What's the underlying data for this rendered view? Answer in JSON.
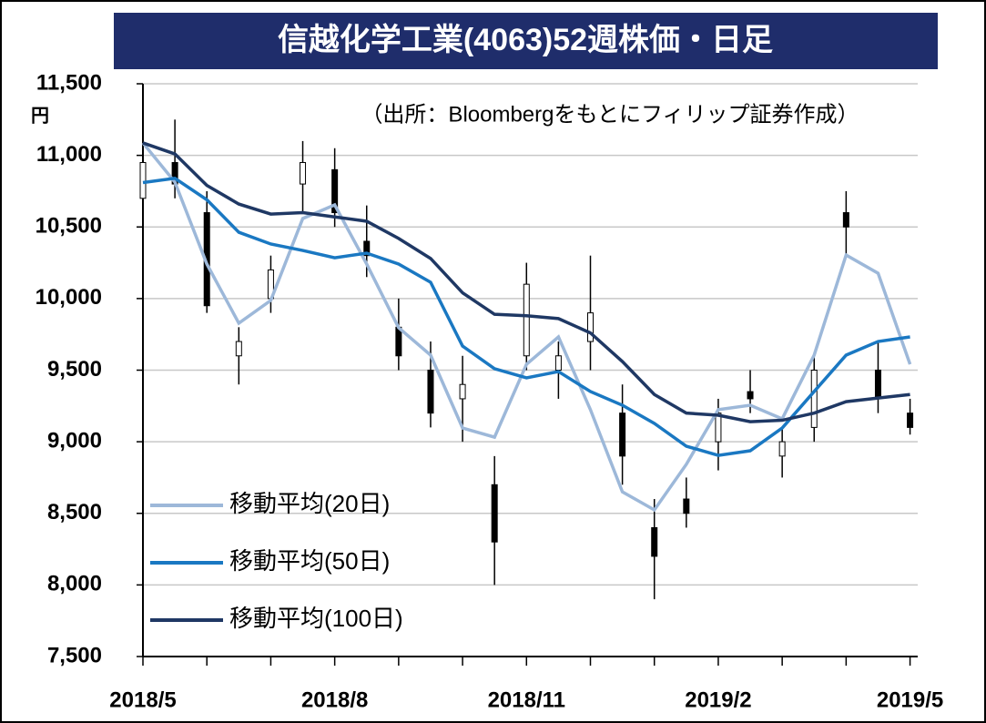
{
  "chart_data": {
    "type": "candlestick",
    "title": "信越化学工業(4063)52週株価・日足",
    "note": "（出所：Bloombergをもとにフィリップ証券作成）",
    "y_unit": "円",
    "x": [
      0,
      0.5,
      1,
      1.5,
      2,
      2.5,
      3,
      3.5,
      4,
      4.5,
      5,
      5.5,
      6,
      6.5,
      7,
      7.5,
      8,
      8.5,
      9,
      9.5,
      10,
      10.5,
      11,
      11.5,
      12
    ],
    "xlim": [
      0,
      12.12
    ],
    "xticks": [
      {
        "value": 0,
        "label": "2018/5"
      },
      {
        "value": 3,
        "label": "2018/8"
      },
      {
        "value": 6,
        "label": "2018/11"
      },
      {
        "value": 9,
        "label": "2019/2"
      },
      {
        "value": 12,
        "label": "2019/5"
      }
    ],
    "xminorticks": [
      1,
      2,
      4,
      5,
      7,
      8,
      10,
      11
    ],
    "ylim": [
      7500,
      11500
    ],
    "yticks": [
      {
        "value": 7500,
        "label": "7,500"
      },
      {
        "value": 8000,
        "label": "8,000"
      },
      {
        "value": 8500,
        "label": "8,500"
      },
      {
        "value": 9000,
        "label": "9,000"
      },
      {
        "value": 9500,
        "label": "9,500"
      },
      {
        "value": 10000,
        "label": "10,000"
      },
      {
        "value": 10500,
        "label": "10,500"
      },
      {
        "value": 11000,
        "label": "11,000"
      },
      {
        "value": 11500,
        "label": "11,500"
      }
    ],
    "grid": true,
    "candles": {
      "color": "#000000",
      "open": [
        10700,
        10950,
        10600,
        9600,
        10000,
        10800,
        10900,
        10400,
        9800,
        9500,
        9300,
        8700,
        9600,
        9500,
        9700,
        9200,
        8400,
        8600,
        9000,
        9350,
        8900,
        9100,
        10600,
        9500,
        9200
      ],
      "high": [
        11050,
        11250,
        10750,
        9800,
        10300,
        11100,
        11050,
        10650,
        10000,
        9700,
        9600,
        8900,
        10250,
        9700,
        10300,
        9400,
        8600,
        8750,
        9300,
        9500,
        9100,
        9600,
        10750,
        9700,
        9300
      ],
      "low": [
        10600,
        10700,
        9900,
        9400,
        9900,
        10600,
        10500,
        10150,
        9500,
        9100,
        9000,
        8000,
        9500,
        9300,
        9500,
        8700,
        7900,
        8400,
        8800,
        9200,
        8750,
        9000,
        10300,
        9200,
        9050
      ],
      "close": [
        10950,
        10800,
        9950,
        9700,
        10200,
        10950,
        10600,
        10300,
        9600,
        9200,
        9400,
        8300,
        10100,
        9600,
        9900,
        8900,
        8200,
        8500,
        9200,
        9300,
        9000,
        9500,
        10500,
        9300,
        9100
      ]
    },
    "series": [
      {
        "name": "移動平均(20日)",
        "color": "#9db8d9",
        "values": [
          11087,
          10813,
          10241,
          9828,
          9987,
          10559,
          10654,
          10241,
          9796,
          9605,
          9096,
          9032,
          9541,
          9732,
          9224,
          8650,
          8524,
          8842,
          9224,
          9255,
          9160,
          9605,
          10304,
          10177,
          9541
        ]
      },
      {
        "name": "移動平均(50日)",
        "color": "#1a78c2",
        "values": [
          10810,
          10840,
          10690,
          10463,
          10381,
          10336,
          10285,
          10317,
          10241,
          10114,
          9668,
          9510,
          9446,
          9490,
          9351,
          9255,
          9128,
          8969,
          8905,
          8937,
          9096,
          9351,
          9605,
          9700,
          9732
        ]
      },
      {
        "name": "移動平均(100日)",
        "color": "#1f3864",
        "values": [
          11087,
          11010,
          10790,
          10660,
          10590,
          10600,
          10570,
          10540,
          10420,
          10280,
          10040,
          9890,
          9880,
          9860,
          9760,
          9560,
          9330,
          9200,
          9185,
          9140,
          9150,
          9200,
          9280,
          9305,
          9330
        ]
      }
    ]
  }
}
